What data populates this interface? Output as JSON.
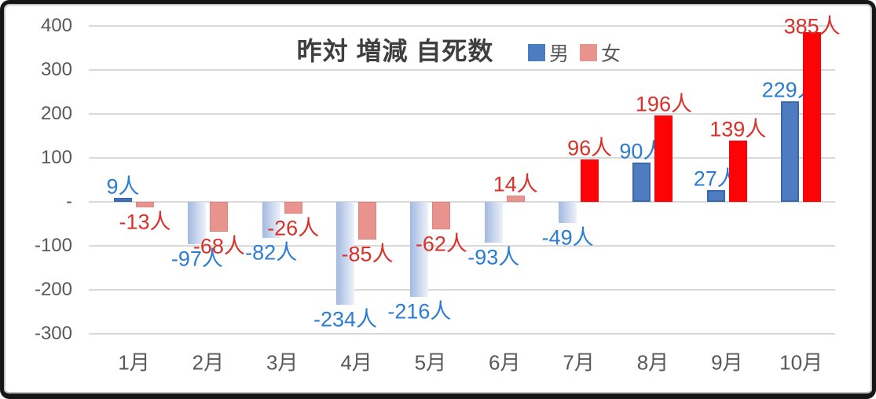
{
  "window": {
    "frame_color": "#161616",
    "inner_border_color": "#c4c4c4",
    "background": "#ffffff"
  },
  "chart_data": {
    "type": "bar",
    "title": "昨対 増減 自死数",
    "unit_suffix": "人",
    "categories": [
      "1月",
      "2月",
      "3月",
      "4月",
      "5月",
      "6月",
      "7月",
      "8月",
      "9月",
      "10月"
    ],
    "series": [
      {
        "name": "男",
        "values": [
          9,
          -97,
          -82,
          -234,
          -216,
          -93,
          -49,
          90,
          27,
          229
        ],
        "legend_color": "#4e7cc0",
        "label_color": "#2b7cd3",
        "positive_fill": "#4e7cc0",
        "positive_border": "#3a68ae",
        "negative_gradient": [
          "#a3b9e0",
          "#edf2fa"
        ]
      },
      {
        "name": "女",
        "values": [
          -13,
          -68,
          -26,
          -85,
          -62,
          14,
          96,
          196,
          139,
          385
        ],
        "legend_color": "#e8938d",
        "label_color": "#d8312a",
        "salmon_fill": "#e8938d",
        "salmon_border": "#dd8680",
        "red_fill": "#fb0307",
        "fills": [
          "salmon",
          "salmon",
          "salmon",
          "salmon",
          "salmon",
          "salmon",
          "red",
          "red",
          "red",
          "red"
        ]
      }
    ],
    "y_ticks": [
      {
        "value": 400,
        "label": "400"
      },
      {
        "value": 300,
        "label": "300"
      },
      {
        "value": 200,
        "label": "200"
      },
      {
        "value": 100,
        "label": "100"
      },
      {
        "value": 0,
        "label": "-"
      },
      {
        "value": -100,
        "label": "-100"
      },
      {
        "value": -200,
        "label": "-200"
      },
      {
        "value": -300,
        "label": "-300"
      }
    ],
    "ylim": [
      -300,
      400
    ],
    "grid": true,
    "grid_color": "#d9d9d9",
    "axis_label_color": "#595959",
    "legend_position": "top, right of title"
  }
}
